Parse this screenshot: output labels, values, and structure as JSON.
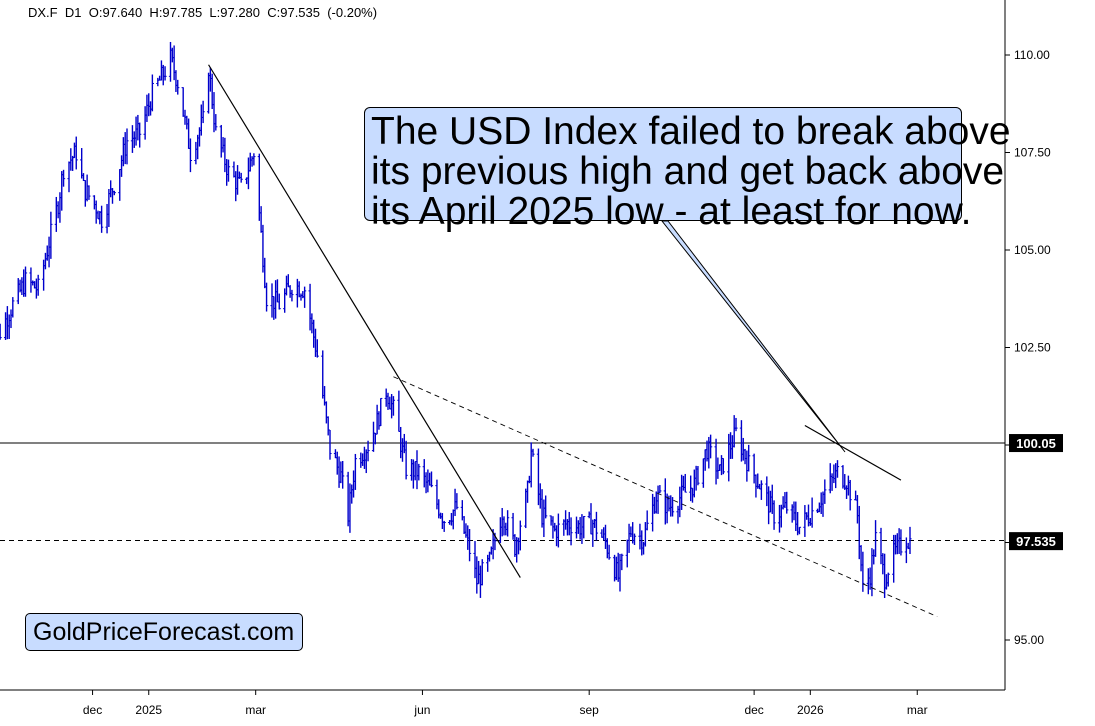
{
  "header": {
    "symbol": "DX.F",
    "timeframe": "D1",
    "ohlc": "O:97.640  H:97.785  L:97.280  C:97.535  (-0.20%)"
  },
  "callout": {
    "lines": [
      "The USD Index failed to break above",
      "its previous high and get back above",
      "its April 2025 low - at least for now."
    ]
  },
  "brand": {
    "text": "GoldPriceForecast.com"
  },
  "colors": {
    "candles": "#0000cc",
    "callout_bg": "#c8dcff",
    "price_tag_bg": "#000000",
    "price_tag_text": "#ffffff",
    "lines": "#000000"
  },
  "chart_data": {
    "type": "line",
    "style": "daily OHLC bars",
    "y_ticks": [
      95.0,
      97.5,
      100.0,
      102.5,
      105.0,
      107.5,
      110.0
    ],
    "y_tick_labels": [
      "95.00",
      "97.50",
      "100.00",
      "102.50",
      "105.00",
      "107.50",
      "110.00"
    ],
    "ylim": [
      94.2,
      111.2
    ],
    "x_labels": [
      "dec",
      "2025",
      "mar",
      "jun",
      "sep",
      "dec",
      "2026",
      "mar"
    ],
    "grid": false,
    "price_tags": [
      {
        "label": "100.05",
        "value": 100.05
      },
      {
        "label": "97.535",
        "value": 97.535
      }
    ],
    "horizontal_levels": [
      {
        "value": 100.05,
        "style": "solid"
      },
      {
        "value": 97.55,
        "style": "dashed"
      }
    ],
    "series": [
      {
        "points": [
          [
            "2024-10-04",
            102.1
          ],
          [
            "2024-10-11",
            102.9
          ],
          [
            "2024-10-18",
            103.6
          ],
          [
            "2024-10-25",
            104.2
          ],
          [
            "2024-11-01",
            104.0
          ],
          [
            "2024-11-06",
            105.0
          ],
          [
            "2024-11-12",
            106.2
          ],
          [
            "2024-11-15",
            107.1
          ],
          [
            "2024-11-22",
            107.5
          ],
          [
            "2024-11-26",
            106.6
          ],
          [
            "2024-12-03",
            106.1
          ],
          [
            "2024-12-06",
            105.8
          ],
          [
            "2024-12-13",
            106.7
          ],
          [
            "2024-12-20",
            107.8
          ],
          [
            "2024-12-27",
            108.0
          ],
          [
            "2025-01-03",
            109.0
          ],
          [
            "2025-01-10",
            109.6
          ],
          [
            "2025-01-13",
            109.9
          ],
          [
            "2025-01-17",
            109.3
          ],
          [
            "2025-01-24",
            107.5
          ],
          [
            "2025-01-31",
            108.3
          ],
          [
            "2025-02-03",
            109.7
          ],
          [
            "2025-02-07",
            108.0
          ],
          [
            "2025-02-14",
            107.0
          ],
          [
            "2025-02-21",
            106.6
          ],
          [
            "2025-02-28",
            107.5
          ],
          [
            "2025-03-07",
            103.8
          ],
          [
            "2025-03-14",
            103.6
          ],
          [
            "2025-03-21",
            104.1
          ],
          [
            "2025-03-28",
            104.0
          ],
          [
            "2025-04-04",
            102.3
          ],
          [
            "2025-04-11",
            99.9
          ],
          [
            "2025-04-17",
            99.2
          ],
          [
            "2025-04-21",
            98.2
          ],
          [
            "2025-04-25",
            99.6
          ],
          [
            "2025-05-02",
            100.0
          ],
          [
            "2025-05-07",
            100.6
          ],
          [
            "2025-05-12",
            101.4
          ],
          [
            "2025-05-16",
            100.9
          ],
          [
            "2025-05-23",
            99.4
          ],
          [
            "2025-05-30",
            99.3
          ],
          [
            "2025-06-06",
            98.8
          ],
          [
            "2025-06-13",
            98.1
          ],
          [
            "2025-06-20",
            98.4
          ],
          [
            "2025-06-27",
            97.3
          ],
          [
            "2025-07-01",
            96.5
          ],
          [
            "2025-07-08",
            97.0
          ],
          [
            "2025-07-15",
            98.3
          ],
          [
            "2025-07-22",
            97.4
          ],
          [
            "2025-07-29",
            98.8
          ],
          [
            "2025-07-31",
            99.8
          ],
          [
            "2025-08-06",
            98.2
          ],
          [
            "2025-08-13",
            97.8
          ],
          [
            "2025-08-20",
            98.0
          ],
          [
            "2025-08-27",
            97.9
          ],
          [
            "2025-09-03",
            98.0
          ],
          [
            "2025-09-10",
            97.5
          ],
          [
            "2025-09-17",
            96.6
          ],
          [
            "2025-09-24",
            97.8
          ],
          [
            "2025-10-01",
            97.6
          ],
          [
            "2025-10-08",
            98.7
          ],
          [
            "2025-10-15",
            98.4
          ],
          [
            "2025-10-22",
            98.7
          ],
          [
            "2025-10-29",
            99.0
          ],
          [
            "2025-11-05",
            99.9
          ],
          [
            "2025-11-12",
            99.3
          ],
          [
            "2025-11-19",
            100.1
          ],
          [
            "2025-11-21",
            100.3
          ],
          [
            "2025-11-28",
            99.5
          ],
          [
            "2025-12-05",
            98.9
          ],
          [
            "2025-12-12",
            98.2
          ],
          [
            "2025-12-19",
            98.4
          ],
          [
            "2025-12-26",
            97.9
          ],
          [
            "2026-01-02",
            98.3
          ],
          [
            "2026-01-09",
            98.8
          ],
          [
            "2026-01-16",
            99.3
          ],
          [
            "2026-01-21",
            99.1
          ],
          [
            "2026-01-27",
            98.2
          ],
          [
            "2026-01-30",
            96.3
          ],
          [
            "2026-02-03",
            96.7
          ],
          [
            "2026-02-06",
            97.6
          ],
          [
            "2026-02-11",
            96.6
          ],
          [
            "2026-02-16",
            97.2
          ],
          [
            "2026-02-23",
            97.6
          ],
          [
            "2026-02-25",
            97.535
          ]
        ]
      }
    ],
    "trendlines": [
      {
        "style": "solid",
        "from": [
          "2025-02-03",
          109.75
        ],
        "to": [
          "2025-07-25",
          96.6
        ]
      },
      {
        "style": "dashed",
        "from": [
          "2025-05-16",
          101.75
        ],
        "to": [
          "2026-03-12",
          95.6
        ]
      },
      {
        "style": "solid",
        "from": [
          "2025-12-29",
          100.5
        ],
        "to": [
          "2026-02-20",
          99.1
        ]
      }
    ]
  }
}
